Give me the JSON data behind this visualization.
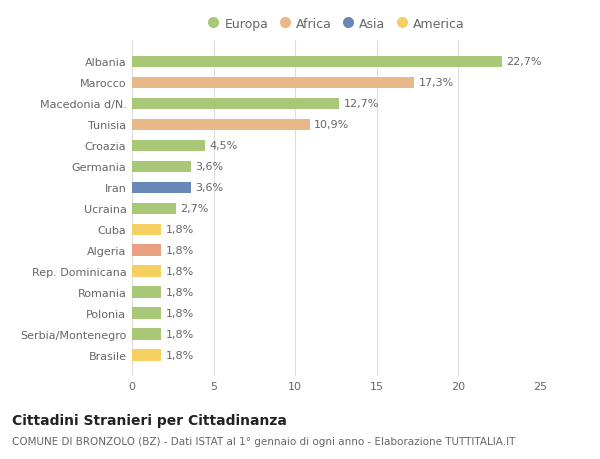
{
  "categories": [
    "Brasile",
    "Serbia/Montenegro",
    "Polonia",
    "Romania",
    "Rep. Dominicana",
    "Algeria",
    "Cuba",
    "Ucraina",
    "Iran",
    "Germania",
    "Croazia",
    "Tunisia",
    "Macedonia d/N.",
    "Marocco",
    "Albania"
  ],
  "values": [
    1.8,
    1.8,
    1.8,
    1.8,
    1.8,
    1.8,
    1.8,
    2.7,
    3.6,
    3.6,
    4.5,
    10.9,
    12.7,
    17.3,
    22.7
  ],
  "colors": [
    "#f5d060",
    "#a8c878",
    "#a8c878",
    "#a8c878",
    "#f5d060",
    "#e8a080",
    "#f5d060",
    "#a8c878",
    "#6888b8",
    "#a8c878",
    "#a8c878",
    "#e8b888",
    "#a8c878",
    "#e8b888",
    "#a8c878"
  ],
  "label_texts": [
    "1,8%",
    "1,8%",
    "1,8%",
    "1,8%",
    "1,8%",
    "1,8%",
    "1,8%",
    "2,7%",
    "3,6%",
    "3,6%",
    "4,5%",
    "10,9%",
    "12,7%",
    "17,3%",
    "22,7%"
  ],
  "legend_labels": [
    "Europa",
    "Africa",
    "Asia",
    "America"
  ],
  "legend_colors": [
    "#a8c878",
    "#e8b888",
    "#6888b8",
    "#f5d060"
  ],
  "title": "Cittadini Stranieri per Cittadinanza",
  "subtitle": "COMUNE DI BRONZOLO (BZ) - Dati ISTAT al 1° gennaio di ogni anno - Elaborazione TUTTITALIA.IT",
  "xlim": [
    0,
    25
  ],
  "xticks": [
    0,
    5,
    10,
    15,
    20,
    25
  ],
  "bg_color": "#ffffff",
  "plot_bg_color": "#ffffff",
  "grid_color": "#dddddd",
  "bar_height": 0.55,
  "title_fontsize": 10,
  "subtitle_fontsize": 7.5,
  "tick_fontsize": 8,
  "label_fontsize": 8,
  "legend_fontsize": 9,
  "text_color": "#666666"
}
